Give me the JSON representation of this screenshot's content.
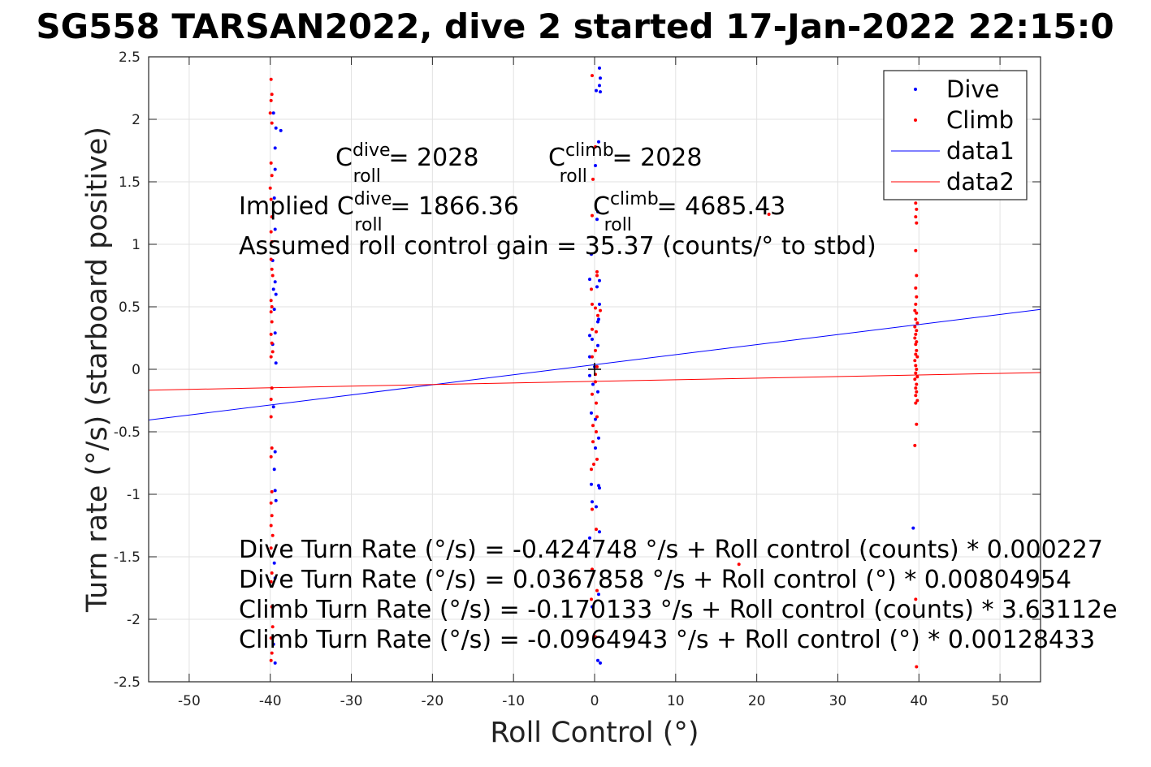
{
  "page_title": "SG558 TARSAN2022, dive 2 started 17-Jan-2022 22:15:0",
  "colors": {
    "dive": "#0000ff",
    "climb": "#ff0000",
    "axis": "#262626",
    "grid": "#e2e2e2"
  },
  "annotations": {
    "c_dive": {
      "base": "C",
      "sup": "dive",
      "sub": "roll",
      "rest": " = 2028"
    },
    "c_climb": {
      "base": "C",
      "sup": "climb",
      "sub": "roll",
      "rest": " = 2028"
    },
    "implied_dive": {
      "pre": "Implied C",
      "sup": "dive",
      "sub": "roll",
      "rest": " = 1866.36"
    },
    "implied_climb": {
      "base": "C",
      "sup": "climb",
      "sub": "roll",
      "rest": " = 4685.43"
    },
    "gain": "Assumed roll control gain = 35.37 (counts/° to stbd)",
    "eq1": "Dive Turn Rate (°/s) = -0.424748 °/s + Roll control (counts) * 0.000227",
    "eq2": "Dive Turn Rate (°/s) = 0.0367858 °/s + Roll control (°) * 0.00804954",
    "eq3": "Climb Turn Rate (°/s) = -0.170133 °/s + Roll control (counts) * 3.63112e",
    "eq4": "Climb Turn Rate (°/s) = -0.0964943 °/s + Roll control (°) * 0.00128433"
  },
  "chart_data": {
    "type": "scatter",
    "title": "SG558 TARSAN2022, dive 2 started 17-Jan-2022 22:15:0",
    "xlabel": "Roll Control (°)",
    "ylabel": "Turn rate (°/s) (starboard positive)",
    "xlim": [
      -55,
      55
    ],
    "ylim": [
      -2.5,
      2.5
    ],
    "xticks": [
      -50,
      -40,
      -30,
      -20,
      -10,
      0,
      10,
      20,
      30,
      40,
      50
    ],
    "yticks": [
      2.5,
      2,
      1.5,
      1,
      0.5,
      0,
      -0.5,
      -1,
      -1.5,
      -2,
      -2.5
    ],
    "grid": true,
    "legend_position": "top-right",
    "legend": [
      "Dive",
      "Climb",
      "data1",
      "data2"
    ],
    "series": [
      {
        "name": "Dive",
        "kind": "points",
        "color": "#0000ff",
        "points": [
          [
            -39.6,
            2.05
          ],
          [
            -39.3,
            1.93
          ],
          [
            -38.7,
            1.91
          ],
          [
            -39.4,
            1.77
          ],
          [
            -39.4,
            1.6
          ],
          [
            -39.5,
            1.37
          ],
          [
            -39.4,
            1.12
          ],
          [
            -39.7,
            0.87
          ],
          [
            -39.4,
            0.7
          ],
          [
            -39.6,
            0.64
          ],
          [
            -39.3,
            0.6
          ],
          [
            -39.5,
            0.48
          ],
          [
            -39.4,
            0.29
          ],
          [
            -39.7,
            0.2
          ],
          [
            -39.3,
            0.05
          ],
          [
            -39.6,
            -0.3
          ],
          [
            -39.4,
            -0.66
          ],
          [
            -39.5,
            -0.8
          ],
          [
            -39.4,
            -0.97
          ],
          [
            -39.3,
            -1.05
          ],
          [
            -39.5,
            -1.55
          ],
          [
            -39.4,
            -1.67
          ],
          [
            -39.6,
            -2.2
          ],
          [
            -39.4,
            -2.35
          ],
          [
            0.6,
            2.41
          ],
          [
            0.7,
            2.33
          ],
          [
            0.6,
            2.27
          ],
          [
            0.2,
            2.23
          ],
          [
            0.7,
            2.22
          ],
          [
            0.5,
            1.82
          ],
          [
            0.1,
            1.63
          ],
          [
            0.4,
            1.26
          ],
          [
            0.3,
            1.2
          ],
          [
            -0.4,
            0.92
          ],
          [
            0.6,
            0.71
          ],
          [
            -0.6,
            0.72
          ],
          [
            0.3,
            0.66
          ],
          [
            0.6,
            0.52
          ],
          [
            0.5,
            0.4
          ],
          [
            0.4,
            0.38
          ],
          [
            -0.6,
            0.27
          ],
          [
            -0.3,
            0.24
          ],
          [
            0.4,
            0.19
          ],
          [
            -0.6,
            0.1
          ],
          [
            0.0,
            0.02
          ],
          [
            -0.6,
            -0.05
          ],
          [
            -0.2,
            -0.12
          ],
          [
            0.4,
            -0.18
          ],
          [
            -0.4,
            -0.35
          ],
          [
            0.1,
            -0.4
          ],
          [
            0.5,
            -0.55
          ],
          [
            0.1,
            -0.63
          ],
          [
            0.5,
            -0.93
          ],
          [
            0.6,
            -0.95
          ],
          [
            -0.4,
            -0.92
          ],
          [
            -0.3,
            -1.06
          ],
          [
            0.2,
            -1.1
          ],
          [
            -0.6,
            -1.35
          ],
          [
            0.6,
            -1.3
          ],
          [
            0.5,
            -1.8
          ],
          [
            -0.3,
            -1.9
          ],
          [
            0.4,
            -2.33
          ],
          [
            0.7,
            -2.35
          ],
          [
            39.3,
            -1.27
          ]
        ]
      },
      {
        "name": "Climb",
        "kind": "points",
        "color": "#ff0000",
        "points": [
          [
            -39.9,
            2.32
          ],
          [
            -39.8,
            2.2
          ],
          [
            -39.9,
            2.15
          ],
          [
            -40.0,
            2.05
          ],
          [
            -39.8,
            1.97
          ],
          [
            -39.9,
            1.65
          ],
          [
            -39.8,
            1.55
          ],
          [
            -40.0,
            1.45
          ],
          [
            -39.9,
            1.36
          ],
          [
            -39.8,
            1.22
          ],
          [
            -39.9,
            1.1
          ],
          [
            -39.8,
            1.02
          ],
          [
            -39.9,
            0.88
          ],
          [
            -39.8,
            0.8
          ],
          [
            -39.7,
            0.75
          ],
          [
            -39.9,
            0.55
          ],
          [
            -39.8,
            0.5
          ],
          [
            -39.9,
            0.46
          ],
          [
            -39.8,
            0.38
          ],
          [
            -39.9,
            0.28
          ],
          [
            -39.8,
            0.21
          ],
          [
            -39.7,
            0.14
          ],
          [
            -39.9,
            0.1
          ],
          [
            -39.8,
            -0.15
          ],
          [
            -39.9,
            -0.24
          ],
          [
            -39.9,
            -0.38
          ],
          [
            -39.8,
            -0.63
          ],
          [
            -39.9,
            -0.7
          ],
          [
            -39.8,
            -0.98
          ],
          [
            -39.9,
            -1.07
          ],
          [
            -39.8,
            -1.17
          ],
          [
            -39.9,
            -1.25
          ],
          [
            -39.7,
            -1.33
          ],
          [
            -39.9,
            -1.43
          ],
          [
            -39.8,
            -1.63
          ],
          [
            -39.9,
            -1.7
          ],
          [
            -39.8,
            -1.9
          ],
          [
            -39.7,
            -2.06
          ],
          [
            -39.9,
            -2.15
          ],
          [
            -39.8,
            -2.27
          ],
          [
            -39.9,
            -2.33
          ],
          [
            -0.3,
            2.35
          ],
          [
            0.1,
            1.78
          ],
          [
            -0.2,
            1.52
          ],
          [
            -0.3,
            1.23
          ],
          [
            0.3,
            0.78
          ],
          [
            0.3,
            0.75
          ],
          [
            -0.4,
            0.64
          ],
          [
            -0.3,
            0.52
          ],
          [
            0.1,
            0.49
          ],
          [
            0.4,
            0.43
          ],
          [
            0.7,
            0.47
          ],
          [
            -0.3,
            0.32
          ],
          [
            0.2,
            0.3
          ],
          [
            0.1,
            0.15
          ],
          [
            -0.3,
            0.1
          ],
          [
            0.3,
            0.02
          ],
          [
            0.1,
            -0.04
          ],
          [
            0.1,
            -0.1
          ],
          [
            -0.3,
            -0.2
          ],
          [
            0.2,
            -0.27
          ],
          [
            0.3,
            -0.38
          ],
          [
            -0.2,
            -0.45
          ],
          [
            0.2,
            -0.5
          ],
          [
            -0.2,
            -0.58
          ],
          [
            0.3,
            -0.72
          ],
          [
            -0.1,
            -0.76
          ],
          [
            -0.4,
            -0.8
          ],
          [
            -0.3,
            -1.12
          ],
          [
            0.2,
            -1.28
          ],
          [
            -0.3,
            -1.6
          ],
          [
            0.3,
            -1.77
          ],
          [
            -0.4,
            -1.84
          ],
          [
            0.1,
            -2.14
          ],
          [
            17.8,
            -1.56
          ],
          [
            21.5,
            1.24
          ],
          [
            39.6,
            1.33
          ],
          [
            39.7,
            1.28
          ],
          [
            39.6,
            1.22
          ],
          [
            39.7,
            1.17
          ],
          [
            39.6,
            0.95
          ],
          [
            39.7,
            0.75
          ],
          [
            39.6,
            0.65
          ],
          [
            39.7,
            0.58
          ],
          [
            39.6,
            0.52
          ],
          [
            39.5,
            0.47
          ],
          [
            39.7,
            0.45
          ],
          [
            39.6,
            0.4
          ],
          [
            39.8,
            0.37
          ],
          [
            39.5,
            0.34
          ],
          [
            39.7,
            0.31
          ],
          [
            39.6,
            0.28
          ],
          [
            39.5,
            0.25
          ],
          [
            39.7,
            0.22
          ],
          [
            39.6,
            0.2
          ],
          [
            39.7,
            0.15
          ],
          [
            39.6,
            0.12
          ],
          [
            39.8,
            0.1
          ],
          [
            39.5,
            0.07
          ],
          [
            39.6,
            0.03
          ],
          [
            39.7,
            0.0
          ],
          [
            39.6,
            -0.03
          ],
          [
            39.8,
            -0.06
          ],
          [
            39.5,
            -0.08
          ],
          [
            39.7,
            -0.12
          ],
          [
            39.6,
            -0.15
          ],
          [
            39.7,
            -0.18
          ],
          [
            39.6,
            -0.21
          ],
          [
            39.8,
            -0.25
          ],
          [
            39.6,
            -0.27
          ],
          [
            39.7,
            -0.44
          ],
          [
            39.5,
            -0.61
          ],
          [
            39.6,
            -1.84
          ],
          [
            39.7,
            -2.38
          ]
        ]
      },
      {
        "name": "data1",
        "kind": "line",
        "color": "#0000ff",
        "x": [
          -55,
          55
        ],
        "y": [
          -0.406,
          0.479
        ]
      },
      {
        "name": "data2",
        "kind": "line",
        "color": "#ff0000",
        "x": [
          -55,
          55
        ],
        "y": [
          -0.167,
          -0.026
        ]
      }
    ],
    "marker": {
      "x": 0,
      "y": 0
    }
  }
}
